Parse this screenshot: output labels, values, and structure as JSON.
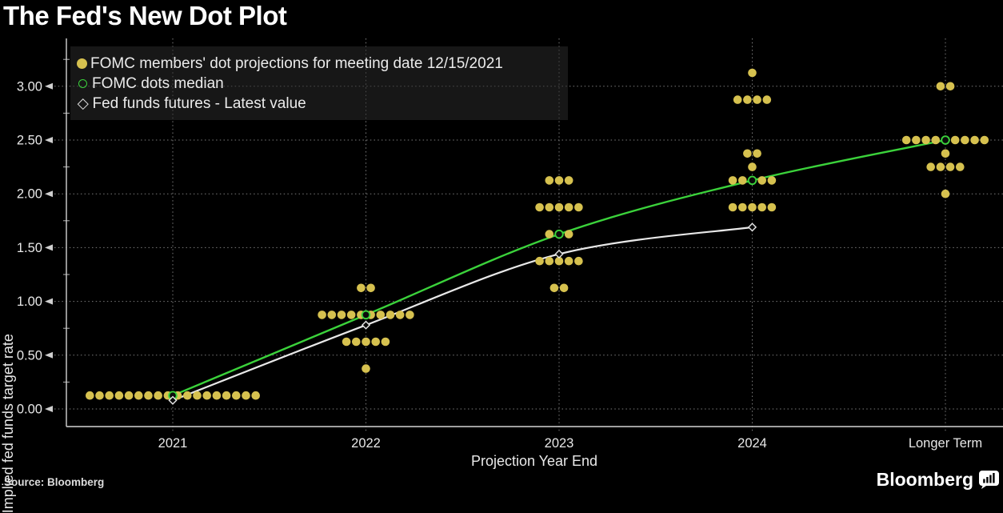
{
  "page": {
    "title": "The Fed's New Dot Plot",
    "source": "Source: Bloomberg",
    "brand": "Bloomberg"
  },
  "legend": {
    "position": "top-left",
    "items": [
      {
        "marker": "filled-yellow-dot",
        "label": "FOMC members' dot projections for meeting date 12/15/2021"
      },
      {
        "marker": "open-green-circle",
        "label": "FOMC dots median"
      },
      {
        "marker": "open-white-diamond",
        "label": "Fed funds futures - Latest value"
      }
    ]
  },
  "chart_data": {
    "type": "scatter",
    "title": "The Fed's New Dot Plot",
    "xlabel": "Projection Year End",
    "ylabel": "Implied fed funds target rate",
    "categories": [
      "2021",
      "2022",
      "2023",
      "2024",
      "Longer Term"
    ],
    "y_ticks": [
      "0.00",
      "0.50",
      "1.00",
      "1.50",
      "2.00",
      "2.50",
      "3.00"
    ],
    "ylim": [
      -0.16,
      3.45
    ],
    "grid": true,
    "legend_position": "top-left",
    "dot_series": {
      "name": "FOMC members' dot projections for meeting date 12/15/2021",
      "clusters": [
        {
          "category": "2021",
          "dots": [
            {
              "value": 0.125,
              "count": 18
            }
          ]
        },
        {
          "category": "2022",
          "dots": [
            {
              "value": 1.125,
              "count": 2
            },
            {
              "value": 0.875,
              "count": 10
            },
            {
              "value": 0.625,
              "count": 5
            },
            {
              "value": 0.375,
              "count": 1
            }
          ]
        },
        {
          "category": "2023",
          "dots": [
            {
              "value": 2.125,
              "count": 3
            },
            {
              "value": 1.875,
              "count": 5
            },
            {
              "value": 1.625,
              "count": 3
            },
            {
              "value": 1.375,
              "count": 5
            },
            {
              "value": 1.125,
              "count": 2
            }
          ]
        },
        {
          "category": "2024",
          "dots": [
            {
              "value": 3.125,
              "count": 1
            },
            {
              "value": 2.875,
              "count": 4
            },
            {
              "value": 2.375,
              "count": 2
            },
            {
              "value": 2.25,
              "count": 1
            },
            {
              "value": 2.125,
              "count": 5
            },
            {
              "value": 1.875,
              "count": 5
            }
          ]
        },
        {
          "category": "Longer Term",
          "dots": [
            {
              "value": 3.0,
              "count": 2
            },
            {
              "value": 2.5,
              "count": 9
            },
            {
              "value": 2.375,
              "count": 1
            },
            {
              "value": 2.25,
              "count": 4
            },
            {
              "value": 2.0,
              "count": 1
            }
          ]
        }
      ]
    },
    "median_series": {
      "name": "FOMC dots median",
      "categories": [
        "2021",
        "2022",
        "2023",
        "2024",
        "Longer Term"
      ],
      "values": [
        0.125,
        0.875,
        1.625,
        2.125,
        2.5
      ]
    },
    "futures_series": {
      "name": "Fed funds futures - Latest value",
      "categories": [
        "2021",
        "2022",
        "2023",
        "2024"
      ],
      "values": [
        0.08,
        0.78,
        1.44,
        1.69
      ]
    },
    "colors": {
      "dots": "#d6c14f",
      "median": "#3bd23b",
      "futures": "#e8e8e8",
      "background": "#000000"
    }
  }
}
